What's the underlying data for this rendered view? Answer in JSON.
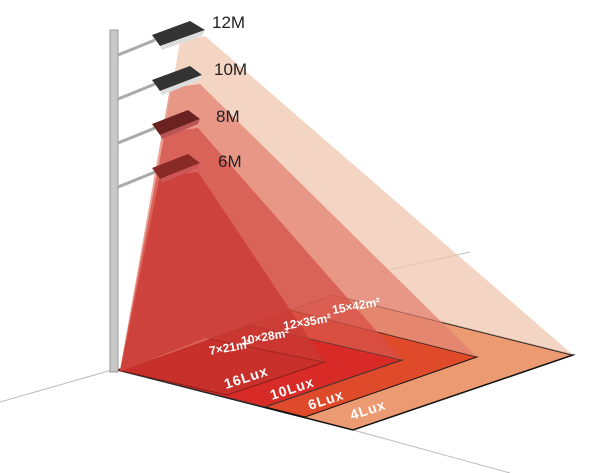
{
  "heights": [
    "12M",
    "10M",
    "8M",
    "6M"
  ],
  "areas": [
    "15×42m²",
    "12×35m²",
    "10×28m²",
    "7×21m²"
  ],
  "lux": [
    "16Lux",
    "10Lux",
    "6Lux",
    "4Lux"
  ],
  "colors": {
    "cone_12m": "#f0c6ae",
    "cone_10m": "#e27d6c",
    "cone_8m": "#d65249",
    "cone_6m": "#c93a34",
    "zone_4lux": "#ec9a72",
    "zone_6lux": "#de4a2a",
    "zone_10lux": "#d82a26",
    "zone_16lux": "#c8302c"
  }
}
